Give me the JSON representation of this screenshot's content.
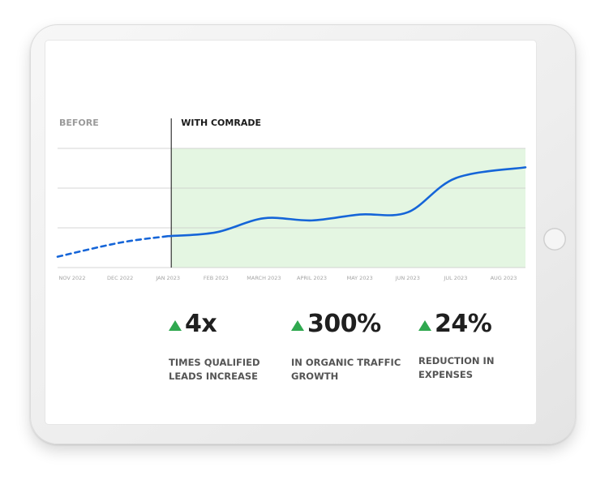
{
  "chart_data": {
    "type": "line",
    "before_label": "BEFORE",
    "after_label": "WITH COMRADE",
    "x_ticks": [
      "NOV 2022",
      "DEC 2022",
      "JAN 2023",
      "FEB 2023",
      "MARCH 2023",
      "APRIL 2023",
      "MAY 2023",
      "JUN 2023",
      "JUL 2023",
      "AUG 2023"
    ],
    "series": [
      {
        "segment": "before",
        "style": "dashed",
        "points": [
          {
            "x": "NOV 2022",
            "y": 1.0
          },
          {
            "x": "DEC 2022",
            "y": 1.26
          },
          {
            "x": "JAN 2023",
            "y": 1.38
          }
        ]
      },
      {
        "segment": "with",
        "style": "solid",
        "points": [
          {
            "x": "JAN 2023",
            "y": 1.38
          },
          {
            "x": "FEB 2023",
            "y": 1.45
          },
          {
            "x": "MARCH 2023",
            "y": 1.71
          },
          {
            "x": "APRIL 2023",
            "y": 1.67
          },
          {
            "x": "MAY 2023",
            "y": 1.78
          },
          {
            "x": "JUN 2023",
            "y": 1.82
          },
          {
            "x": "JUL 2023",
            "y": 2.45
          },
          {
            "x": "AUG 2023",
            "y": 2.65
          }
        ]
      }
    ],
    "ylim": [
      0.8,
      3.0
    ],
    "grid": true,
    "colors": {
      "line": "#1565d8",
      "highlight": "#e4f6e2",
      "divider": "#333333",
      "before_text": "#9a9a9a",
      "after_text": "#1a1a1a"
    }
  },
  "stats": [
    {
      "value": "4x",
      "label": "TIMES QUALIFIED LEADS INCREASE"
    },
    {
      "value": "300%",
      "label": "IN ORGANIC TRAFFIC GROWTH"
    },
    {
      "value": "24%",
      "label": "REDUCTION IN EXPENSES"
    }
  ],
  "colors": {
    "arrow": "#2fa84f"
  }
}
